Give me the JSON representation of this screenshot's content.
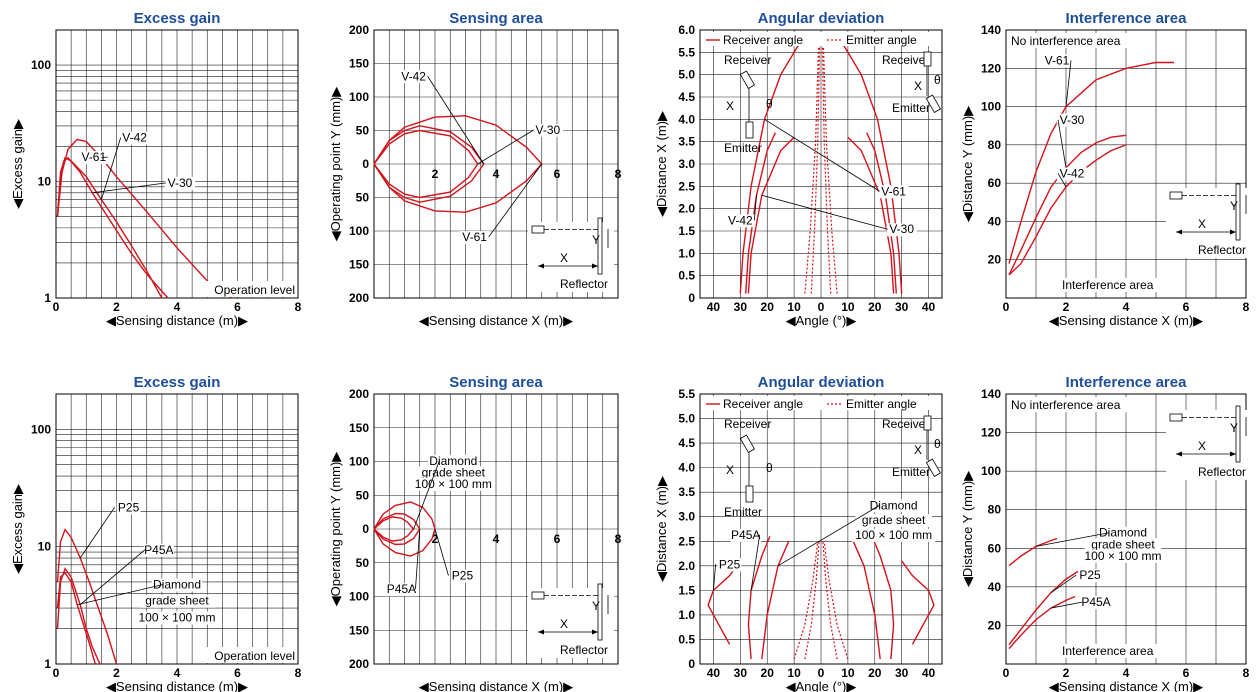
{
  "colors": {
    "curve": "#d3121b",
    "title": "#1f4e9c",
    "grid": "#222222"
  },
  "chart_data": [
    {
      "id": "r1-excess",
      "type": "line",
      "title": "Excess gain",
      "xlabel": "◀Sensing distance (m)▶",
      "ylabel": "◀Excess gain▶",
      "xlim": [
        0,
        8
      ],
      "ylim": [
        1,
        200
      ],
      "yscale": "log",
      "x_ticks": [
        "0",
        "2",
        "4",
        "6",
        "8"
      ],
      "y_ticks": [
        "1",
        "10",
        "100"
      ],
      "note": "Operation level",
      "series": [
        {
          "name": "V-61",
          "x": [
            0.05,
            0.2,
            0.4,
            0.7,
            1.0,
            1.5,
            2,
            3,
            4,
            5,
            5.8
          ],
          "y": [
            5,
            12,
            19,
            23,
            22,
            16,
            11,
            5.5,
            2.7,
            1.4,
            1
          ]
        },
        {
          "name": "V-42",
          "x": [
            0.05,
            0.15,
            0.3,
            0.5,
            1,
            1.5,
            2,
            2.5,
            3,
            3.5
          ],
          "y": [
            5,
            12,
            16,
            15,
            11,
            7,
            4.5,
            2.8,
            1.7,
            1
          ]
        },
        {
          "name": "V-30",
          "x": [
            0.05,
            0.15,
            0.25,
            0.4,
            0.8,
            1.2,
            1.6,
            2,
            2.5,
            3,
            3.7
          ],
          "y": [
            5,
            10,
            15,
            16,
            12,
            8,
            5.5,
            3.8,
            2.4,
            1.6,
            1
          ]
        }
      ],
      "labels": [
        {
          "text": "V-61",
          "x": 1.25,
          "y": 15
        },
        {
          "text": "V-42",
          "x": 2.6,
          "y": 22
        },
        {
          "text": "V-30",
          "x": 4.1,
          "y": 9
        }
      ]
    },
    {
      "id": "r1-sensing",
      "type": "line",
      "title": "Sensing area",
      "xlabel": "◀Sensing distance X (m)▶",
      "ylabel": "◀Operating point Y (mm)▶",
      "xlim": [
        0,
        8
      ],
      "ylim": [
        -200,
        200
      ],
      "x_ticks": [
        "2",
        "4",
        "6",
        "8"
      ],
      "y_ticks": [
        "200",
        "150",
        "100",
        "50",
        "0",
        "50",
        "100",
        "150",
        "200"
      ],
      "reflector_label": "Reflector",
      "x_mark": "X",
      "y_mark": "Y",
      "series": [
        {
          "name": "V-61",
          "x": [
            0,
            0.5,
            1,
            2,
            3,
            4,
            5,
            5.5,
            5,
            4,
            3,
            2,
            1,
            0.5,
            0
          ],
          "y": [
            0,
            35,
            55,
            70,
            72,
            58,
            25,
            0,
            -25,
            -58,
            -72,
            -70,
            -55,
            -35,
            0
          ]
        },
        {
          "name": "V-42",
          "x": [
            0,
            0.5,
            1,
            1.5,
            2.5,
            3.2,
            3.6,
            3.2,
            2.5,
            1.5,
            1,
            0.5,
            0
          ],
          "y": [
            0,
            35,
            50,
            57,
            48,
            25,
            0,
            -25,
            -48,
            -57,
            -50,
            -35,
            0
          ]
        },
        {
          "name": "V-30",
          "x": [
            0,
            0.5,
            1,
            1.5,
            2.5,
            3.1,
            3.4,
            3.1,
            2.5,
            1.5,
            1,
            0.5,
            0
          ],
          "y": [
            0,
            30,
            45,
            50,
            42,
            20,
            0,
            -20,
            -42,
            -50,
            -45,
            -30,
            0
          ]
        }
      ],
      "labels": [
        {
          "text": "V-42",
          "x": 1.3,
          "y": 125
        },
        {
          "text": "V-30",
          "x": 5.7,
          "y": 45
        },
        {
          "text": "V-61",
          "x": 3.3,
          "y": -115
        }
      ]
    },
    {
      "id": "r1-angular",
      "type": "line",
      "title": "Angular deviation",
      "xlabel": "◀Angle (°)▶",
      "ylabel": "◀Distance X (m)▶",
      "xlim": [
        -45,
        45
      ],
      "ylim": [
        0,
        6.0
      ],
      "x_ticks": [
        "40",
        "30",
        "20",
        "10",
        "0",
        "10",
        "20",
        "30",
        "40"
      ],
      "y_ticks": [
        "0",
        "0.5",
        "1.0",
        "1.5",
        "2.0",
        "2.5",
        "3.0",
        "3.5",
        "4.0",
        "4.5",
        "5.0",
        "5.5",
        "6.0"
      ],
      "legend": [
        "Receiver angle",
        "Emitter angle"
      ],
      "diagram_labels": [
        "Receiver",
        "Emitter",
        "Receiver",
        "Emitter",
        "X",
        "X",
        "θ",
        "θ"
      ],
      "series": [
        {
          "name": "V-61",
          "x": [
            -30,
            -29,
            -26,
            -21,
            -15,
            -8
          ],
          "y": [
            0.1,
            1.0,
            2.5,
            4.0,
            5.0,
            5.7
          ]
        },
        {
          "name": "V-42",
          "x": [
            -28,
            -27,
            -24,
            -20,
            -17
          ],
          "y": [
            0.1,
            1.0,
            2.3,
            3.3,
            3.7
          ]
        },
        {
          "name": "V-30",
          "x": [
            -27,
            -26,
            -22,
            -15,
            -10
          ],
          "y": [
            0.1,
            1.0,
            2.3,
            3.3,
            3.6
          ]
        }
      ],
      "emitter_series": [
        {
          "x": [
            -6,
            -4,
            -2,
            -0.8
          ],
          "y": [
            0.1,
            1.5,
            3.5,
            5.8
          ]
        }
      ],
      "labels": [
        {
          "text": "V-61",
          "x": 27,
          "y": 2.3
        },
        {
          "text": "V-42",
          "x": -30,
          "y": 1.65
        },
        {
          "text": "V-30",
          "x": 30,
          "y": 1.45
        }
      ]
    },
    {
      "id": "r1-interference",
      "type": "line",
      "title": "Interference area",
      "xlabel": "◀Sensing distance X (m)▶",
      "ylabel": "◀Distance Y (mm)▶",
      "xlim": [
        0,
        8
      ],
      "ylim": [
        0,
        140
      ],
      "x_ticks": [
        "0",
        "2",
        "4",
        "6",
        "8"
      ],
      "y_ticks": [
        "20",
        "40",
        "60",
        "80",
        "100",
        "120",
        "140"
      ],
      "top_note": "No interference area",
      "bottom_note": "Interference area",
      "reflector_label": "Reflector",
      "x_mark": "X",
      "y_mark": "Y",
      "series": [
        {
          "name": "V-61",
          "x": [
            0.1,
            0.5,
            1,
            1.5,
            2,
            3,
            4,
            5,
            5.6
          ],
          "y": [
            18,
            40,
            66,
            86,
            100,
            114,
            120,
            123,
            123
          ]
        },
        {
          "name": "V-30",
          "x": [
            0.1,
            0.5,
            1,
            1.5,
            2,
            2.5,
            3,
            3.5,
            4
          ],
          "y": [
            12,
            25,
            42,
            58,
            68,
            76,
            81,
            84,
            85
          ]
        },
        {
          "name": "V-42",
          "x": [
            0.1,
            0.5,
            1,
            1.5,
            2,
            2.5,
            3,
            3.5,
            4
          ],
          "y": [
            12,
            18,
            32,
            47,
            58,
            66,
            72,
            77,
            80
          ]
        }
      ],
      "labels": [
        {
          "text": "V-61",
          "x": 1.7,
          "y": 122
        },
        {
          "text": "V-30",
          "x": 2.2,
          "y": 91
        },
        {
          "text": "V-42",
          "x": 2.2,
          "y": 63
        }
      ]
    },
    {
      "id": "r2-excess",
      "type": "line",
      "title": "Excess gain",
      "xlabel": "◀Sensing distance (m)▶",
      "ylabel": "◀Excess gain▶",
      "xlim": [
        0,
        8
      ],
      "ylim": [
        1,
        200
      ],
      "yscale": "log",
      "x_ticks": [
        "0",
        "2",
        "4",
        "6",
        "8"
      ],
      "y_ticks": [
        "1",
        "10",
        "100"
      ],
      "note": "Operation level",
      "series": [
        {
          "name": "P25",
          "x": [
            0.05,
            0.15,
            0.3,
            0.5,
            0.8,
            1.1,
            1.4,
            1.7,
            2.0
          ],
          "y": [
            5,
            11,
            14,
            12,
            8,
            5,
            3,
            1.8,
            1
          ]
        },
        {
          "name": "P45A",
          "x": [
            0.05,
            0.15,
            0.3,
            0.5,
            0.8,
            1.0,
            1.2,
            1.45
          ],
          "y": [
            2,
            5,
            6.5,
            5.5,
            3.2,
            2,
            1.4,
            1
          ]
        },
        {
          "name": "Diamond grade sheet 100 × 100 mm",
          "x": [
            0.05,
            0.15,
            0.3,
            0.5,
            0.7,
            0.9,
            1.1,
            1.3
          ],
          "y": [
            3,
            5.5,
            6,
            5,
            3.2,
            2.2,
            1.5,
            1
          ]
        }
      ],
      "labels": [
        {
          "text": "P25",
          "x": 2.4,
          "y": 20
        },
        {
          "text": "P45A",
          "x": 3.4,
          "y": 8.7
        },
        {
          "text": "Diamond",
          "x": 4.0,
          "y": 4.4
        },
        {
          "text": "grade sheet",
          "x": 4.0,
          "y": 3.2
        },
        {
          "text": "100 × 100 mm",
          "x": 4.0,
          "y": 2.3
        }
      ]
    },
    {
      "id": "r2-sensing",
      "type": "line",
      "title": "Sensing area",
      "xlabel": "◀Sensing distance X (m)▶",
      "ylabel": "◀Operating point Y (mm)▶",
      "xlim": [
        0,
        8
      ],
      "ylim": [
        -200,
        200
      ],
      "x_ticks": [
        "2",
        "4",
        "6",
        "8"
      ],
      "y_ticks": [
        "200",
        "150",
        "100",
        "50",
        "0",
        "50",
        "100",
        "150",
        "200"
      ],
      "reflector_label": "Reflector",
      "x_mark": "X",
      "y_mark": "Y",
      "series": [
        {
          "name": "P25",
          "x": [
            0,
            0.3,
            0.7,
            1.2,
            1.6,
            1.9,
            2.0,
            1.9,
            1.6,
            1.2,
            0.7,
            0.3,
            0
          ],
          "y": [
            0,
            22,
            35,
            40,
            32,
            15,
            0,
            -15,
            -32,
            -40,
            -35,
            -22,
            0
          ]
        },
        {
          "name": "P45A",
          "x": [
            0,
            0.3,
            0.7,
            1.0,
            1.3,
            1.5,
            1.3,
            1.0,
            0.7,
            0.3,
            0
          ],
          "y": [
            0,
            15,
            23,
            22,
            14,
            0,
            -14,
            -22,
            -23,
            -15,
            0
          ]
        },
        {
          "name": "Diamond grade sheet 100 × 100 mm",
          "x": [
            0,
            0.3,
            0.6,
            0.9,
            1.1,
            1.3,
            1.1,
            0.9,
            0.6,
            0.3,
            0
          ],
          "y": [
            0,
            12,
            18,
            16,
            10,
            0,
            -10,
            -16,
            -18,
            -12,
            0
          ]
        }
      ],
      "labels": [
        {
          "text": "Diamond",
          "x": 2.6,
          "y": 95
        },
        {
          "text": "grade sheet",
          "x": 2.6,
          "y": 78
        },
        {
          "text": "100 × 100 mm",
          "x": 2.6,
          "y": 61
        },
        {
          "text": "P25",
          "x": 2.9,
          "y": -75
        },
        {
          "text": "P45A",
          "x": 0.9,
          "y": -95
        }
      ]
    },
    {
      "id": "r2-angular",
      "type": "line",
      "title": "Angular deviation",
      "xlabel": "◀Angle (°)▶",
      "ylabel": "◀Distance X (m)▶",
      "xlim": [
        -45,
        45
      ],
      "ylim": [
        0,
        5.5
      ],
      "x_ticks": [
        "40",
        "30",
        "20",
        "10",
        "0",
        "10",
        "20",
        "30",
        "40"
      ],
      "y_ticks": [
        "0",
        "0.5",
        "1.0",
        "1.5",
        "2.0",
        "2.5",
        "3.0",
        "3.5",
        "4.0",
        "4.5",
        "5.0",
        "5.5"
      ],
      "legend": [
        "Receiver angle",
        "Emitter angle"
      ],
      "diagram_labels": [
        "Receiver",
        "Emitter",
        "Receiver",
        "Emitter",
        "X",
        "X",
        "θ",
        "θ"
      ],
      "series": [
        {
          "name": "P25",
          "x": [
            -34,
            -38,
            -42,
            -40,
            -34,
            -30
          ],
          "y": [
            0.4,
            0.8,
            1.2,
            1.5,
            1.8,
            2.1
          ]
        },
        {
          "name": "P45A",
          "x": [
            -26,
            -27,
            -26,
            -22,
            -19
          ],
          "y": [
            0.1,
            0.8,
            1.5,
            2.2,
            2.6
          ]
        },
        {
          "name": "Diamond grade sheet 100 × 100 mm",
          "x": [
            -22,
            -20,
            -16,
            -12
          ],
          "y": [
            0.1,
            1.0,
            2.0,
            2.5
          ]
        }
      ],
      "emitter_series": [
        {
          "x": [
            -10,
            -6,
            -3,
            -1.2
          ],
          "y": [
            0.1,
            0.8,
            1.7,
            2.5
          ]
        }
      ],
      "labels": [
        {
          "text": "P45A",
          "x": -28,
          "y": 2.55
        },
        {
          "text": "P25",
          "x": -34,
          "y": 1.95
        },
        {
          "text": "Diamond",
          "x": 27,
          "y": 3.15
        },
        {
          "text": "grade sheet",
          "x": 27,
          "y": 2.85
        },
        {
          "text": "100 × 100 mm",
          "x": 27,
          "y": 2.55
        }
      ]
    },
    {
      "id": "r2-interference",
      "type": "line",
      "title": "Interference area",
      "xlabel": "◀Sensing distance X (m)▶",
      "ylabel": "◀Distance Y (mm)▶",
      "xlim": [
        0,
        8
      ],
      "ylim": [
        0,
        140
      ],
      "x_ticks": [
        "0",
        "2",
        "4",
        "6",
        "8"
      ],
      "y_ticks": [
        "20",
        "40",
        "60",
        "80",
        "100",
        "120",
        "140"
      ],
      "top_note": "No interference area",
      "bottom_note": "Interference area",
      "reflector_label": "Reflector",
      "x_mark": "X",
      "y_mark": "Y",
      "series": [
        {
          "name": "Diamond grade sheet 100 × 100 mm",
          "x": [
            0.1,
            0.5,
            1.0,
            1.5,
            1.7
          ],
          "y": [
            51,
            56,
            61,
            64,
            65
          ]
        },
        {
          "name": "P25",
          "x": [
            0.1,
            0.5,
            1.0,
            1.5,
            2.0,
            2.4
          ],
          "y": [
            10,
            18,
            28,
            37,
            44,
            48
          ]
        },
        {
          "name": "P45A",
          "x": [
            0.1,
            0.5,
            1.0,
            1.5,
            2.0,
            2.3
          ],
          "y": [
            8,
            15,
            23,
            29,
            33,
            35
          ]
        }
      ],
      "labels": [
        {
          "text": "Diamond",
          "x": 3.9,
          "y": 66
        },
        {
          "text": "grade sheet",
          "x": 3.9,
          "y": 60
        },
        {
          "text": "100 × 100 mm",
          "x": 3.9,
          "y": 54
        },
        {
          "text": "P25",
          "x": 2.8,
          "y": 44
        },
        {
          "text": "P45A",
          "x": 3.0,
          "y": 30
        }
      ]
    }
  ]
}
